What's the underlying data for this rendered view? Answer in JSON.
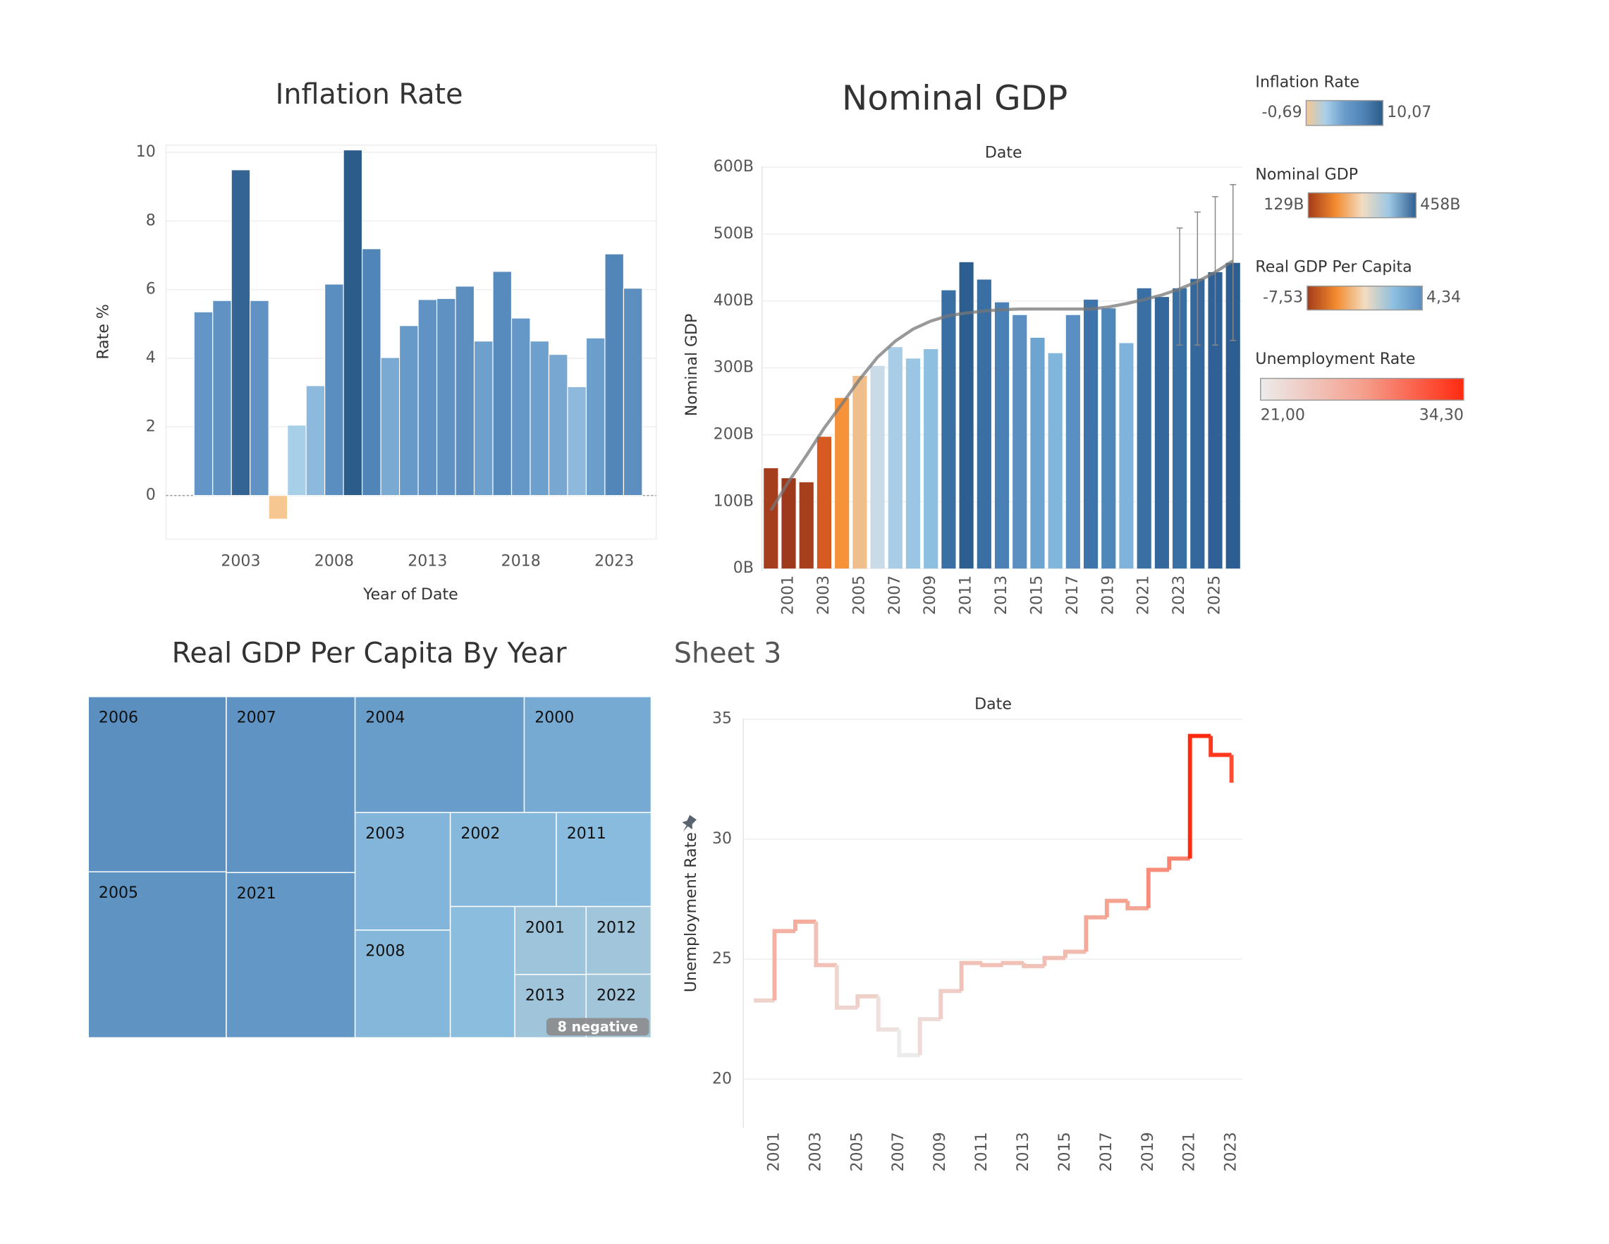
{
  "chart_data": [
    {
      "type": "bar",
      "title": "Inflation Rate",
      "x_label": "Year of Date",
      "y_label": "Rate %",
      "x": [
        2001,
        2002,
        2003,
        2004,
        2005,
        2006,
        2007,
        2008,
        2009,
        2010,
        2011,
        2012,
        2013,
        2014,
        2015,
        2016,
        2017,
        2018,
        2019,
        2020,
        2021,
        2022,
        2023,
        2024
      ],
      "values": [
        5.35,
        5.68,
        9.49,
        5.68,
        -0.69,
        2.05,
        3.2,
        6.16,
        10.07,
        7.19,
        4.02,
        4.95,
        5.71,
        5.74,
        6.1,
        4.5,
        6.53,
        5.17,
        4.5,
        4.11,
        3.17,
        4.59,
        7.04,
        6.04
      ],
      "xlim": [
        1999,
        2025.25
      ],
      "xticks": [
        2003,
        2008,
        2013,
        2018,
        2023
      ],
      "ylim": [
        -1.27,
        10.21
      ],
      "yticks": [
        0,
        2,
        4,
        6,
        8,
        10
      ],
      "grid": true,
      "legend": {
        "title": "Inflation Rate",
        "range": [
          {
            "value": -0.69,
            "label": "-0,69"
          },
          {
            "value": 10.07,
            "label": "10,07"
          }
        ],
        "colors": [
          "#f6c790",
          "#a9d0e9",
          "#6a9ccb",
          "#4f83b6",
          "#2b5c8a"
        ]
      }
    },
    {
      "type": "bar",
      "title": "Nominal GDP",
      "x_label": "Date",
      "y_label": "Nominal GDP",
      "categories": [
        null,
        "2001",
        null,
        "2003",
        null,
        "2005",
        null,
        "2007",
        null,
        "2009",
        null,
        "2011",
        null,
        "2013",
        null,
        "2015",
        null,
        "2017",
        null,
        "2019",
        null,
        "2021",
        null,
        "2023",
        null,
        "2025",
        null
      ],
      "values": [
        150,
        135,
        129,
        197,
        255,
        288,
        303,
        331,
        314,
        328,
        416,
        458,
        432,
        398,
        379,
        345,
        322,
        379,
        402,
        389,
        337,
        419,
        406,
        419,
        433,
        443,
        457
      ],
      "colors": [
        "#a53e1c",
        "#9e3a1b",
        "#a63f1c",
        "#d65a22",
        "#f5923a",
        "#f0be8a",
        "#c9dbe6",
        "#a9cde6",
        "#9ac5e3",
        "#8dbfe0",
        "#3a6fa4",
        "#2d5e90",
        "#3a6fa4",
        "#4b80b6",
        "#5b8fc2",
        "#6ea4d0",
        "#80b5dc",
        "#5b8fc2",
        "#3f74aa",
        "#5087bb",
        "#7fb3db",
        "#3a6fa4",
        "#34689d",
        "#3a6fa4",
        "#34689d",
        "#2f6196",
        "#2d5e92"
      ],
      "trend": [
        87,
        130,
        169,
        210,
        246,
        283,
        316,
        340,
        358,
        370,
        378,
        382,
        385,
        387,
        388,
        388,
        388,
        388,
        388,
        391,
        396,
        402,
        409,
        418,
        429,
        443,
        460
      ],
      "error_low": [
        null,
        null,
        null,
        null,
        null,
        null,
        null,
        null,
        null,
        null,
        null,
        null,
        null,
        null,
        null,
        null,
        null,
        null,
        null,
        null,
        null,
        null,
        null,
        334,
        334,
        334,
        341
      ],
      "error_high": [
        null,
        null,
        null,
        null,
        null,
        null,
        null,
        null,
        null,
        null,
        null,
        null,
        null,
        null,
        null,
        null,
        null,
        null,
        null,
        null,
        null,
        null,
        null,
        509,
        533,
        556,
        574
      ],
      "ylim": [
        -4,
        602
      ],
      "yticks": [
        {
          "value": 0,
          "label": "0B"
        },
        {
          "value": 100,
          "label": "100B"
        },
        {
          "value": 200,
          "label": "200B"
        },
        {
          "value": 300,
          "label": "300B"
        },
        {
          "value": 400,
          "label": "400B"
        },
        {
          "value": 500,
          "label": "500B"
        },
        {
          "value": 600,
          "label": "600B"
        }
      ],
      "grid": true,
      "legend": {
        "title": "Nominal GDP",
        "range": [
          {
            "value": 129,
            "label": "129B"
          },
          {
            "value": 458,
            "label": "458B"
          }
        ],
        "colors": [
          "#a33b1a",
          "#f28a2e",
          "#f3dcc0",
          "#9cc7e4",
          "#2f5f92"
        ]
      }
    },
    {
      "type": "treemap",
      "title": "Real GDP Per Capita By Year",
      "categories": [
        "2006",
        "2005",
        "2007",
        "2021",
        "2004",
        "2000",
        "2003",
        "2008",
        "2002",
        "2011",
        null,
        "2001",
        "2013",
        "2012",
        "2022"
      ],
      "values": [
        4.34,
        4.11,
        4.07,
        3.82,
        3.52,
        2.64,
        2.01,
        1.84,
        1.79,
        1.6,
        1.52,
        0.87,
        0.81,
        0.79,
        0.74
      ],
      "badge": "8 negative",
      "legend": {
        "title": "Real GDP Per Capita",
        "range": [
          {
            "value": -7.53,
            "label": "-7,53"
          },
          {
            "value": 4.34,
            "label": "4,34"
          }
        ],
        "colors": [
          "#a33b1a",
          "#f28a2e",
          "#f3dcc0",
          "#8dbfe0",
          "#5a8fc0"
        ]
      }
    },
    {
      "type": "line",
      "title": "Sheet 3",
      "x_label": "Date",
      "y_label": "Unemployment Rate",
      "categories": [
        null,
        "2001",
        null,
        "2003",
        null,
        "2005",
        null,
        "2007",
        null,
        "2009",
        null,
        "2011",
        null,
        "2013",
        null,
        "2015",
        null,
        "2017",
        null,
        "2019",
        null,
        "2021",
        null,
        "2023"
      ],
      "values": [
        23.28,
        26.17,
        26.56,
        24.75,
        22.98,
        23.45,
        22.07,
        21.0,
        22.5,
        23.67,
        24.84,
        24.75,
        24.84,
        24.71,
        25.05,
        25.31,
        26.74,
        27.43,
        27.12,
        28.72,
        29.19,
        34.3,
        33.51,
        32.35
      ],
      "step": true,
      "ylim": [
        17.97,
        35.03
      ],
      "yticks": [
        20,
        25,
        30,
        35
      ],
      "grid": true,
      "legend": {
        "title": "Unemployment Rate",
        "range": [
          {
            "value": 21.0,
            "label": "21,00"
          },
          {
            "value": 34.3,
            "label": "34,30"
          }
        ],
        "colors": [
          "#ececec",
          "#f5a08e",
          "#ff2a10"
        ]
      }
    }
  ]
}
